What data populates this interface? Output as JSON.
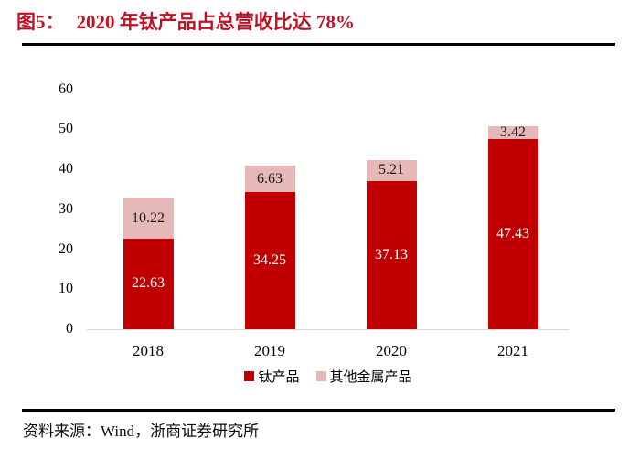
{
  "figure": {
    "label": "图5：",
    "title": "2020 年钛产品占总营收比达 78%",
    "title_color": "#c01124"
  },
  "chart_data": {
    "type": "bar",
    "stacked": true,
    "title": "2020 年钛产品占总营收比达 78%",
    "categories": [
      "2018",
      "2019",
      "2020",
      "2021"
    ],
    "series": [
      {
        "name": "钛产品",
        "color": "#c00000",
        "label_color": "#ffffff",
        "values": [
          22.63,
          34.25,
          37.13,
          47.43
        ]
      },
      {
        "name": "其他金属产品",
        "color": "#e6b9b8",
        "label_color": "#1a1a1a",
        "values": [
          10.22,
          6.63,
          5.21,
          3.42
        ]
      }
    ],
    "xlabel": "",
    "ylabel": "",
    "ylim": [
      0,
      60
    ],
    "yticks": [
      0,
      10,
      20,
      30,
      40,
      50,
      60
    ],
    "grid": false,
    "legend_position": "bottom",
    "axis_line_color": "#d9d9d9"
  },
  "footer": {
    "source": "资料来源：Wind，浙商证券研究所"
  }
}
